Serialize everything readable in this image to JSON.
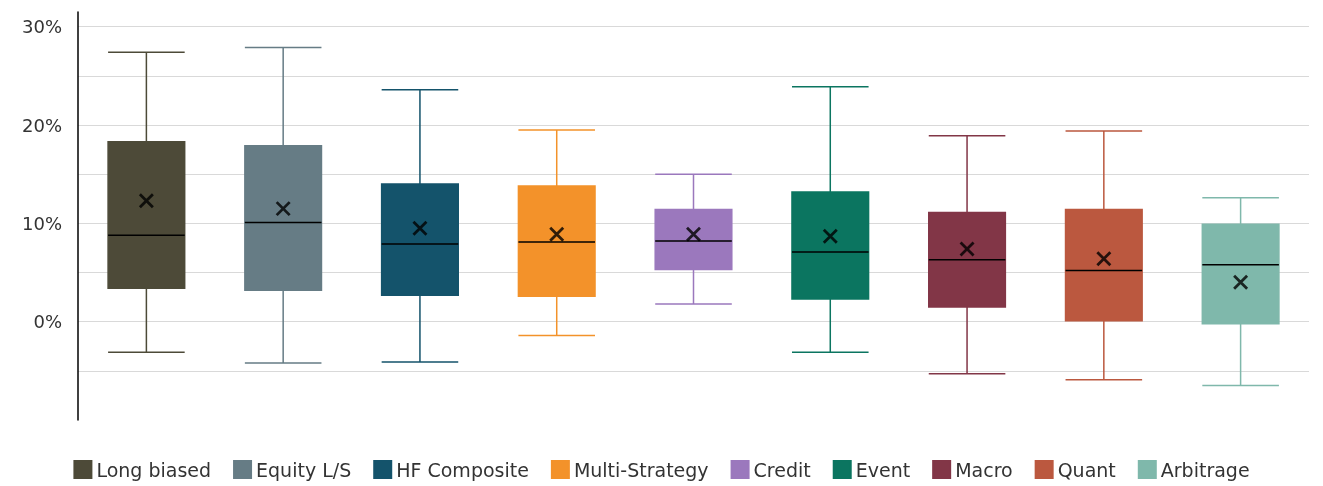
{
  "chart_data": {
    "type": "box",
    "categories": [
      null,
      null,
      null,
      null,
      null,
      null,
      null,
      null,
      null
    ],
    "series": [
      {
        "name": "Long biased",
        "color": "#4d4a38",
        "boxes": [
          {
            "low": -3.1,
            "q1": 3.4,
            "median": 8.8,
            "q3": 18.3,
            "high": 27.4,
            "mean": 12.3
          },
          null,
          null,
          null,
          null,
          null,
          null,
          null,
          null
        ]
      },
      {
        "name": "Equity L/S",
        "color": "#667c85",
        "boxes": [
          null,
          {
            "low": -4.2,
            "q1": 3.2,
            "median": 10.1,
            "q3": 17.9,
            "high": 27.9,
            "mean": 11.5
          },
          null,
          null,
          null,
          null,
          null,
          null,
          null
        ]
      },
      {
        "name": "HF Composite",
        "color": "#14536b",
        "boxes": [
          null,
          null,
          {
            "low": -4.1,
            "q1": 2.7,
            "median": 7.9,
            "q3": 14.0,
            "high": 23.6,
            "mean": 9.5
          },
          null,
          null,
          null,
          null,
          null,
          null
        ]
      },
      {
        "name": "Multi-Strategy",
        "color": "#f3922a",
        "boxes": [
          null,
          null,
          null,
          {
            "low": -1.4,
            "q1": 2.6,
            "median": 8.1,
            "q3": 13.8,
            "high": 19.5,
            "mean": 8.9
          },
          null,
          null,
          null,
          null,
          null
        ]
      },
      {
        "name": "Credit",
        "color": "#9b78bd",
        "boxes": [
          null,
          null,
          null,
          null,
          {
            "low": 1.8,
            "q1": 5.3,
            "median": 8.2,
            "q3": 11.4,
            "high": 15.0,
            "mean": 8.9
          },
          null,
          null,
          null,
          null
        ]
      },
      {
        "name": "Event",
        "color": "#0b7560",
        "boxes": [
          null,
          null,
          null,
          null,
          null,
          {
            "low": -3.1,
            "q1": 2.3,
            "median": 7.1,
            "q3": 13.2,
            "high": 23.9,
            "mean": 8.7
          },
          null,
          null,
          null
        ]
      },
      {
        "name": "Macro",
        "color": "#823647",
        "boxes": [
          null,
          null,
          null,
          null,
          null,
          null,
          {
            "low": -5.3,
            "q1": 1.5,
            "median": 6.3,
            "q3": 11.1,
            "high": 18.9,
            "mean": 7.4
          },
          null,
          null
        ]
      },
      {
        "name": "Quant",
        "color": "#bb583f",
        "boxes": [
          null,
          null,
          null,
          null,
          null,
          null,
          null,
          {
            "low": -5.9,
            "q1": 0.1,
            "median": 5.2,
            "q3": 11.4,
            "high": 19.4,
            "mean": 6.4
          },
          null
        ]
      },
      {
        "name": "Arbitrage",
        "color": "#7fb8ab",
        "boxes": [
          null,
          null,
          null,
          null,
          null,
          null,
          null,
          null,
          {
            "low": -6.5,
            "q1": -0.2,
            "median": 5.8,
            "q3": 9.9,
            "high": 12.6,
            "mean": 4.0
          }
        ]
      }
    ],
    "ylim": [
      -10,
      31.5
    ],
    "yticks": [
      {
        "value": -5,
        "label": null
      },
      {
        "value": 0,
        "label": "0%"
      },
      {
        "value": 5,
        "label": null
      },
      {
        "value": 10,
        "label": "10%"
      },
      {
        "value": 15,
        "label": null
      },
      {
        "value": 20,
        "label": "20%"
      },
      {
        "value": 25,
        "label": null
      },
      {
        "value": 30,
        "label": "30%"
      }
    ],
    "grid": "y",
    "legend": "bottom",
    "tick_labels": "y",
    "marker": "cross"
  }
}
